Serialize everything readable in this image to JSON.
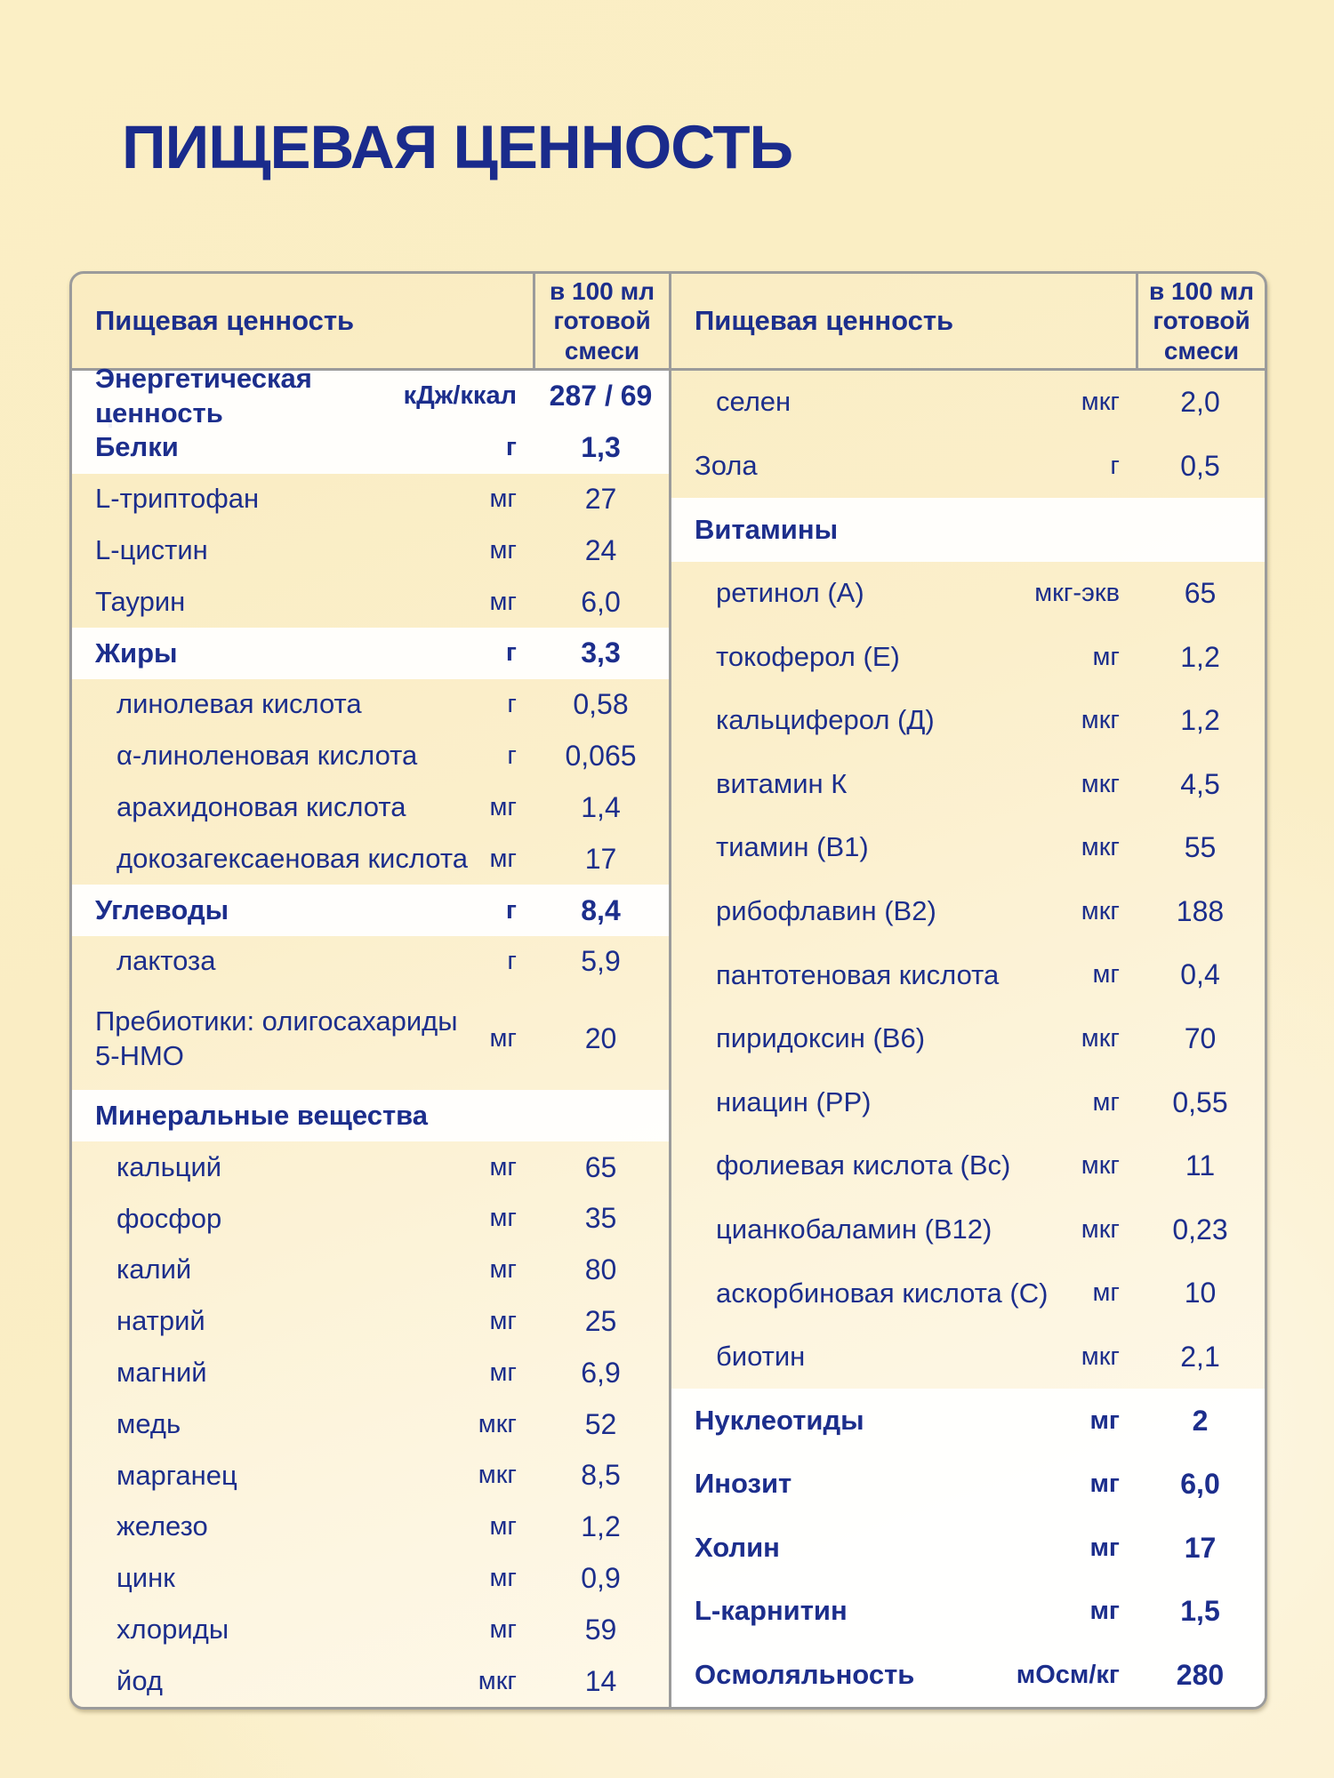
{
  "title": "ПИЩЕВАЯ ЦЕННОСТЬ",
  "colors": {
    "text_navy": "#1C2E8C",
    "background_cream": "#FAEDC6",
    "row_white": "#FFFFFF",
    "border_gray": "#9B9B9B"
  },
  "table": {
    "header": {
      "name": "Пищевая ценность",
      "value": "в 100 мл готовой смеси"
    },
    "left": {
      "rows": [
        {
          "label": "Энергетическая ценность",
          "unit": "кДж/ккал",
          "value": "287 / 69",
          "white": true,
          "indent": false,
          "tall": false
        },
        {
          "label": "Белки",
          "unit": "г",
          "value": "1,3",
          "white": true,
          "indent": false,
          "tall": false
        },
        {
          "label": "L-триптофан",
          "unit": "мг",
          "value": "27",
          "white": false,
          "indent": false,
          "tall": false
        },
        {
          "label": "L-цистин",
          "unit": "мг",
          "value": "24",
          "white": false,
          "indent": false,
          "tall": false
        },
        {
          "label": "Таурин",
          "unit": "мг",
          "value": "6,0",
          "white": false,
          "indent": false,
          "tall": false
        },
        {
          "label": "Жиры",
          "unit": "г",
          "value": "3,3",
          "white": true,
          "indent": false,
          "tall": false
        },
        {
          "label": "линолевая кислота",
          "unit": "г",
          "value": "0,58",
          "white": false,
          "indent": true,
          "tall": false
        },
        {
          "label": "α-линоленовая кислота",
          "unit": "г",
          "value": "0,065",
          "white": false,
          "indent": true,
          "tall": false
        },
        {
          "label": "арахидоновая кислота",
          "unit": "мг",
          "value": "1,4",
          "white": false,
          "indent": true,
          "tall": false
        },
        {
          "label": "докозагексаеновая кислота",
          "unit": "мг",
          "value": "17",
          "white": false,
          "indent": true,
          "tall": false
        },
        {
          "label": "Углеводы",
          "unit": "г",
          "value": "8,4",
          "white": true,
          "indent": false,
          "tall": false
        },
        {
          "label": "лактоза",
          "unit": "г",
          "value": "5,9",
          "white": false,
          "indent": true,
          "tall": false
        },
        {
          "label": "Пребиотики: олигосахариды\n5-НМО",
          "unit": "мг",
          "value": "20",
          "white": false,
          "indent": false,
          "tall": true
        },
        {
          "label": "Минеральные вещества",
          "unit": "",
          "value": "",
          "white": true,
          "indent": false,
          "tall": false
        },
        {
          "label": "кальций",
          "unit": "мг",
          "value": "65",
          "white": false,
          "indent": true,
          "tall": false
        },
        {
          "label": "фосфор",
          "unit": "мг",
          "value": "35",
          "white": false,
          "indent": true,
          "tall": false
        },
        {
          "label": "калий",
          "unit": "мг",
          "value": "80",
          "white": false,
          "indent": true,
          "tall": false
        },
        {
          "label": "натрий",
          "unit": "мг",
          "value": "25",
          "white": false,
          "indent": true,
          "tall": false
        },
        {
          "label": "магний",
          "unit": "мг",
          "value": "6,9",
          "white": false,
          "indent": true,
          "tall": false
        },
        {
          "label": "медь",
          "unit": "мкг",
          "value": "52",
          "white": false,
          "indent": true,
          "tall": false
        },
        {
          "label": "марганец",
          "unit": "мкг",
          "value": "8,5",
          "white": false,
          "indent": true,
          "tall": false
        },
        {
          "label": "железо",
          "unit": "мг",
          "value": "1,2",
          "white": false,
          "indent": true,
          "tall": false
        },
        {
          "label": "цинк",
          "unit": "мг",
          "value": "0,9",
          "white": false,
          "indent": true,
          "tall": false
        },
        {
          "label": "хлориды",
          "unit": "мг",
          "value": "59",
          "white": false,
          "indent": true,
          "tall": false
        },
        {
          "label": "йод",
          "unit": "мкг",
          "value": "14",
          "white": false,
          "indent": true,
          "tall": false
        }
      ]
    },
    "right": {
      "rows": [
        {
          "label": "селен",
          "unit": "мкг",
          "value": "2,0",
          "white": false,
          "indent": true,
          "tall": false
        },
        {
          "label": "Зола",
          "unit": "г",
          "value": "0,5",
          "white": false,
          "indent": false,
          "tall": false
        },
        {
          "label": "Витамины",
          "unit": "",
          "value": "",
          "white": true,
          "indent": false,
          "tall": false
        },
        {
          "label": "ретинол (А)",
          "unit": "мкг-экв",
          "value": "65",
          "white": false,
          "indent": true,
          "tall": false
        },
        {
          "label": "токоферол (Е)",
          "unit": "мг",
          "value": "1,2",
          "white": false,
          "indent": true,
          "tall": false
        },
        {
          "label": "кальциферол (Д)",
          "unit": "мкг",
          "value": "1,2",
          "white": false,
          "indent": true,
          "tall": false
        },
        {
          "label": "витамин К",
          "unit": "мкг",
          "value": "4,5",
          "white": false,
          "indent": true,
          "tall": false
        },
        {
          "label": "тиамин (В1)",
          "unit": "мкг",
          "value": "55",
          "white": false,
          "indent": true,
          "tall": false
        },
        {
          "label": "рибофлавин (В2)",
          "unit": "мкг",
          "value": "188",
          "white": false,
          "indent": true,
          "tall": false
        },
        {
          "label": "пантотеновая кислота",
          "unit": "мг",
          "value": "0,4",
          "white": false,
          "indent": true,
          "tall": false
        },
        {
          "label": "пиридоксин (В6)",
          "unit": "мкг",
          "value": "70",
          "white": false,
          "indent": true,
          "tall": false
        },
        {
          "label": "ниацин (РР)",
          "unit": "мг",
          "value": "0,55",
          "white": false,
          "indent": true,
          "tall": false
        },
        {
          "label": "фолиевая кислота (Вс)",
          "unit": "мкг",
          "value": "11",
          "white": false,
          "indent": true,
          "tall": false
        },
        {
          "label": "цианкобаламин (В12)",
          "unit": "мкг",
          "value": "0,23",
          "white": false,
          "indent": true,
          "tall": false
        },
        {
          "label": "аскорбиновая кислота (С)",
          "unit": "мг",
          "value": "10",
          "white": false,
          "indent": true,
          "tall": false
        },
        {
          "label": "биотин",
          "unit": "мкг",
          "value": "2,1",
          "white": false,
          "indent": true,
          "tall": false
        },
        {
          "label": "Нуклеотиды",
          "unit": "мг",
          "value": "2",
          "white": true,
          "indent": false,
          "tall": false
        },
        {
          "label": "Инозит",
          "unit": "мг",
          "value": "6,0",
          "white": true,
          "indent": false,
          "tall": false
        },
        {
          "label": "Холин",
          "unit": "мг",
          "value": "17",
          "white": true,
          "indent": false,
          "tall": false
        },
        {
          "label": "L-карнитин",
          "unit": "мг",
          "value": "1,5",
          "white": true,
          "indent": false,
          "tall": false
        },
        {
          "label": "Осмоляльность",
          "unit": "мОсм/кг",
          "value": "280",
          "white": true,
          "indent": false,
          "tall": false
        }
      ]
    }
  }
}
